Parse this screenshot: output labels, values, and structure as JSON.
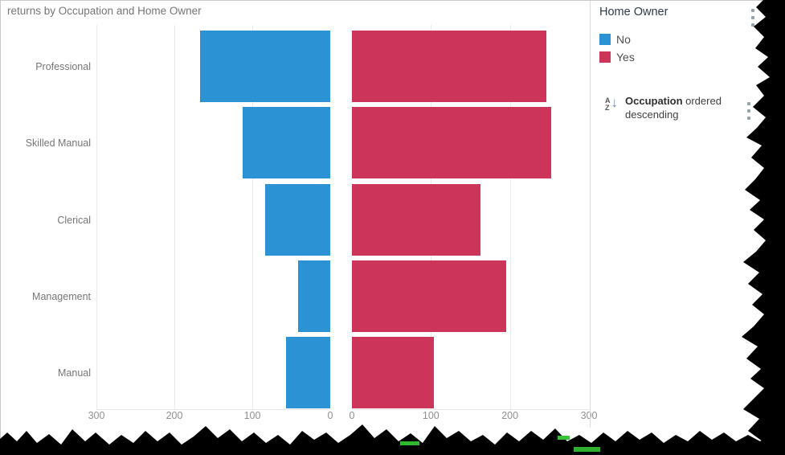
{
  "title": "returns by Occupation and Home Owner",
  "chart_data": {
    "type": "bar",
    "variant": "horizontal-diverging-butterfly",
    "title": "returns by Occupation and Home Owner",
    "categories": [
      "Professional",
      "Skilled Manual",
      "Clerical",
      "Management",
      "Manual"
    ],
    "series": [
      {
        "name": "No",
        "color": "#2B92D3",
        "values": [
          167,
          112,
          84,
          41,
          57
        ]
      },
      {
        "name": "Yes",
        "color": "#CD3459",
        "values": [
          246,
          252,
          163,
          195,
          104
        ]
      }
    ],
    "x_axis": {
      "max": 300,
      "left_ticks": [
        300,
        200,
        100,
        0
      ],
      "right_ticks": [
        0,
        100,
        200,
        300
      ],
      "left_gridlines": [
        300,
        200,
        100
      ],
      "right_gridlines": [
        100,
        200
      ],
      "grid": true
    },
    "legend": {
      "title": "Home Owner",
      "position": "right"
    },
    "sort": "Occupation ordered descending"
  },
  "legend": {
    "title": "Home Owner",
    "items": [
      {
        "label": "No",
        "color": "#2B92D3"
      },
      {
        "label": "Yes",
        "color": "#CD3459"
      }
    ]
  },
  "sort_indicator": {
    "icon": "sort-az-descending",
    "icon_letter_top": "A",
    "icon_letter_bottom": "Z",
    "icon_arrow": "↓",
    "field": "Occupation",
    "suffix": " ordered descending"
  },
  "colors": {
    "series_no": "#2B92D3",
    "series_yes": "#CD3459",
    "gridline": "#eaeaea",
    "title_text": "#757575",
    "tick_text": "#8f8f8f",
    "torn_edge": "#000000",
    "torn_specks": "#2eb82e"
  }
}
